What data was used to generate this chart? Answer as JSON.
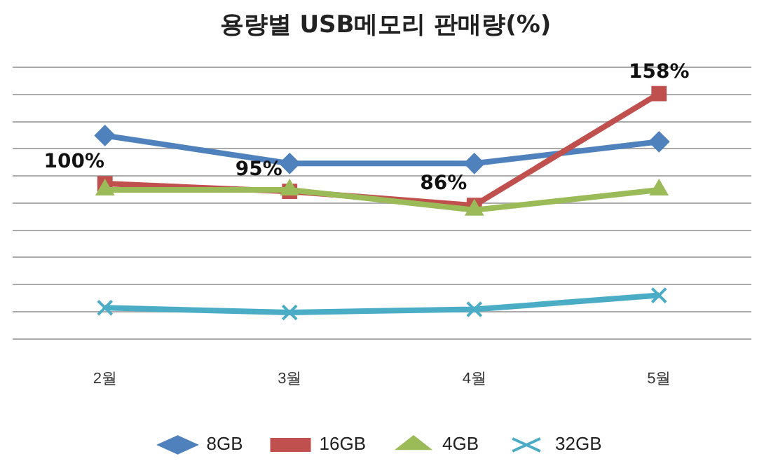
{
  "chart_data": {
    "type": "line",
    "title": "용량별 USB메모리 판매량(%)",
    "categories": [
      "2월",
      "3월",
      "4월",
      "5월"
    ],
    "series": [
      {
        "name": "8GB",
        "color": "#4f81bd",
        "marker": "diamond",
        "values": [
          131,
          113,
          113,
          127
        ]
      },
      {
        "name": "16GB",
        "color": "#c0504d",
        "marker": "square",
        "values": [
          100,
          95,
          86,
          158
        ],
        "value_labels": [
          "100%",
          "95%",
          "86%",
          "158%"
        ]
      },
      {
        "name": "4GB",
        "color": "#9bbb59",
        "marker": "triangle",
        "values": [
          96,
          96,
          83,
          96
        ]
      },
      {
        "name": "32GB",
        "color": "#4bacc6",
        "marker": "cross",
        "values": [
          20,
          17,
          19,
          28
        ]
      }
    ],
    "ylim": [
      0,
      175
    ],
    "yticks": [
      {
        "value": 0,
        "label": null
      },
      {
        "value": 17.5,
        "label": null
      },
      {
        "value": 35,
        "label": null
      },
      {
        "value": 52.5,
        "label": null
      },
      {
        "value": 70,
        "label": null
      },
      {
        "value": 87.5,
        "label": null
      },
      {
        "value": 105,
        "label": null
      },
      {
        "value": 122.5,
        "label": null
      },
      {
        "value": 140,
        "label": null
      },
      {
        "value": 157.5,
        "label": null
      },
      {
        "value": 175,
        "label": null
      }
    ],
    "tick_labels": "x",
    "grid": "y",
    "legend": "bottom"
  }
}
